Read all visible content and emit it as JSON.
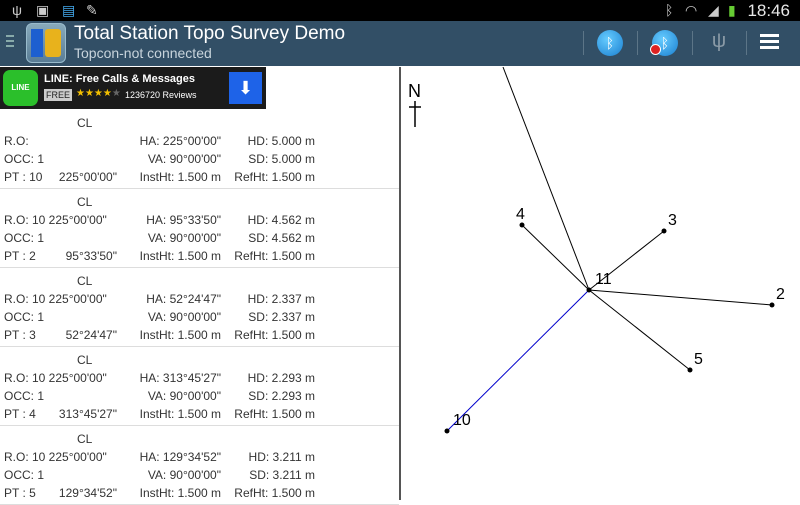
{
  "status_bar": {
    "time": "18:46",
    "icons": [
      "usb-icon",
      "sd-card-icon",
      "app-notification-icon",
      "pencil-icon",
      "bluetooth-icon",
      "wifi-icon",
      "signal-icon",
      "battery-icon"
    ]
  },
  "action_bar": {
    "title": "Total Station Topo Survey Demo",
    "subtitle": "Topcon-not connected",
    "actions": [
      "bluetooth-connect-icon",
      "bluetooth-disconnect-icon",
      "usb-icon",
      "overflow-menu-icon"
    ]
  },
  "ad": {
    "logo": "LINE",
    "title": "LINE: Free Calls & Messages",
    "badge": "FREE",
    "stars": "★★★★★",
    "rating": 4,
    "reviews": "1236720 Reviews"
  },
  "entries": [
    {
      "cl": "CL",
      "ro": "R.O:",
      "ha": "HA: 225°00'00\"",
      "hd": "HD: 5.000 m",
      "occ": "OCC: 1",
      "va": "VA: 90°00'00\"",
      "sd": "SD: 5.000 m",
      "pt": "PT : 10",
      "ang": "225°00'00\"",
      "inst": "InstHt: 1.500 m",
      "ref": "RefHt: 1.500 m"
    },
    {
      "cl": "CL",
      "ro": "R.O: 10  225°00'00\"",
      "ha": "HA: 95°33'50\"",
      "hd": "HD: 4.562 m",
      "occ": "OCC: 1",
      "va": "VA: 90°00'00\"",
      "sd": "SD: 4.562 m",
      "pt": "PT : 2",
      "ang": "95°33'50\"",
      "inst": "InstHt: 1.500 m",
      "ref": "RefHt: 1.500 m"
    },
    {
      "cl": "CL",
      "ro": "R.O: 10  225°00'00\"",
      "ha": "HA: 52°24'47\"",
      "hd": "HD: 2.337 m",
      "occ": "OCC: 1",
      "va": "VA: 90°00'00\"",
      "sd": "SD: 2.337 m",
      "pt": "PT : 3",
      "ang": "52°24'47\"",
      "inst": "InstHt: 1.500 m",
      "ref": "RefHt: 1.500 m"
    },
    {
      "cl": "CL",
      "ro": "R.O: 10  225°00'00\"",
      "ha": "HA: 313°45'27\"",
      "hd": "HD: 2.293 m",
      "occ": "OCC: 1",
      "va": "VA: 90°00'00\"",
      "sd": "SD: 2.293 m",
      "pt": "PT : 4",
      "ang": "313°45'27\"",
      "inst": "InstHt: 1.500 m",
      "ref": "RefHt: 1.500 m"
    },
    {
      "cl": "CL",
      "ro": "R.O: 10  225°00'00\"",
      "ha": "HA: 129°34'52\"",
      "hd": "HD: 3.211 m",
      "occ": "OCC: 1",
      "va": "VA: 90°00'00\"",
      "sd": "SD: 3.211 m",
      "pt": "PT : 5",
      "ang": "129°34'52\"",
      "inst": "InstHt: 1.500 m",
      "ref": "RefHt: 1.500 m"
    }
  ],
  "map": {
    "north": "N",
    "station": "11",
    "points": [
      "4",
      "3",
      "2",
      "5",
      "10"
    ],
    "backsight_color": "#0000cc"
  }
}
